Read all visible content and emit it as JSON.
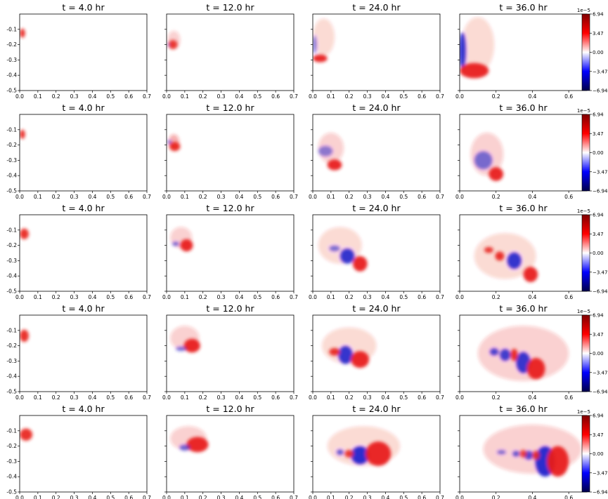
{
  "chart_data": {
    "type": "heatmap",
    "layout": {
      "rows": 5,
      "cols": 4
    },
    "panel_titles": [
      "t = 4.0 hr",
      "t = 12.0 hr",
      "t = 24.0 hr",
      "t = 36.0 hr"
    ],
    "x_ticks": [
      "0.0",
      "0.1",
      "0.2",
      "0.3",
      "0.4",
      "0.5",
      "0.6",
      "0.7"
    ],
    "x_ticks_last_col": [
      "0.0",
      "0.2",
      "0.4",
      "0.6"
    ],
    "y_ticks": [
      "-0.1",
      "-0.2",
      "-0.3",
      "-0.4",
      "-0.5"
    ],
    "xlim": [
      0,
      0.7
    ],
    "ylim": [
      -0.5,
      0
    ],
    "colorbar": {
      "exponent_label": "1e−5",
      "ticks": [
        "6.94",
        "3.47",
        "0.00",
        "−3.47",
        "−6.94"
      ],
      "range": [
        -6.94,
        6.94
      ],
      "colormap": "seismic"
    },
    "colors": {
      "positive": "#e8201a",
      "positive_dark": "#8a0000",
      "negative": "#2222cc",
      "negative_dark": "#00006a",
      "zero": "#ffffff"
    },
    "blobs": [
      [
        [
          {
            "x": 0.015,
            "y": -0.125,
            "rx": 0.015,
            "ry": 0.03,
            "v": 0.9
          }
        ],
        [
          {
            "x": 0.04,
            "y": -0.17,
            "rx": 0.035,
            "ry": 0.06,
            "v": 0.15
          },
          {
            "x": 0.035,
            "y": -0.2,
            "rx": 0.025,
            "ry": 0.03,
            "v": 0.85
          },
          {
            "x": 0.01,
            "y": -0.2,
            "rx": 0.008,
            "ry": 0.012,
            "v": -0.4
          }
        ],
        [
          {
            "x": 0.06,
            "y": -0.15,
            "rx": 0.06,
            "ry": 0.12,
            "v": 0.12
          },
          {
            "x": 0.01,
            "y": -0.2,
            "rx": 0.012,
            "ry": 0.06,
            "v": -0.55
          },
          {
            "x": 0.04,
            "y": -0.29,
            "rx": 0.04,
            "ry": 0.025,
            "v": 0.95
          }
        ],
        [
          {
            "x": 0.1,
            "y": -0.2,
            "rx": 0.09,
            "ry": 0.18,
            "v": 0.12
          },
          {
            "x": 0.015,
            "y": -0.24,
            "rx": 0.02,
            "ry": 0.12,
            "v": -0.9
          },
          {
            "x": 0.08,
            "y": -0.37,
            "rx": 0.08,
            "ry": 0.05,
            "v": 0.95
          }
        ]
      ],
      [
        [
          {
            "x": 0.015,
            "y": -0.13,
            "rx": 0.015,
            "ry": 0.03,
            "v": 0.9
          }
        ],
        [
          {
            "x": 0.04,
            "y": -0.18,
            "rx": 0.03,
            "ry": 0.05,
            "v": 0.25
          },
          {
            "x": 0.045,
            "y": -0.21,
            "rx": 0.03,
            "ry": 0.03,
            "v": 0.9
          },
          {
            "x": 0.015,
            "y": -0.18,
            "rx": 0.012,
            "ry": 0.012,
            "v": -0.6
          }
        ],
        [
          {
            "x": 0.1,
            "y": -0.22,
            "rx": 0.07,
            "ry": 0.1,
            "v": 0.15
          },
          {
            "x": 0.07,
            "y": -0.24,
            "rx": 0.04,
            "ry": 0.035,
            "v": -0.5
          },
          {
            "x": 0.12,
            "y": -0.33,
            "rx": 0.04,
            "ry": 0.035,
            "v": 0.95
          }
        ],
        [
          {
            "x": 0.15,
            "y": -0.26,
            "rx": 0.09,
            "ry": 0.14,
            "v": 0.15
          },
          {
            "x": 0.13,
            "y": -0.3,
            "rx": 0.05,
            "ry": 0.06,
            "v": -0.6
          },
          {
            "x": 0.2,
            "y": -0.39,
            "rx": 0.04,
            "ry": 0.045,
            "v": 0.95
          }
        ]
      ],
      [
        [
          {
            "x": 0.025,
            "y": -0.125,
            "rx": 0.025,
            "ry": 0.035,
            "v": 0.9
          }
        ],
        [
          {
            "x": 0.08,
            "y": -0.15,
            "rx": 0.06,
            "ry": 0.07,
            "v": 0.15
          },
          {
            "x": 0.11,
            "y": -0.2,
            "rx": 0.035,
            "ry": 0.04,
            "v": 0.95
          },
          {
            "x": 0.05,
            "y": -0.19,
            "rx": 0.02,
            "ry": 0.015,
            "v": -0.6
          }
        ],
        [
          {
            "x": 0.15,
            "y": -0.2,
            "rx": 0.12,
            "ry": 0.12,
            "v": 0.12
          },
          {
            "x": 0.19,
            "y": -0.27,
            "rx": 0.04,
            "ry": 0.05,
            "v": -0.9
          },
          {
            "x": 0.12,
            "y": -0.22,
            "rx": 0.03,
            "ry": 0.02,
            "v": -0.6
          },
          {
            "x": 0.26,
            "y": -0.32,
            "rx": 0.04,
            "ry": 0.05,
            "v": 0.95
          }
        ],
        [
          {
            "x": 0.25,
            "y": -0.27,
            "rx": 0.17,
            "ry": 0.15,
            "v": 0.12
          },
          {
            "x": 0.22,
            "y": -0.27,
            "rx": 0.025,
            "ry": 0.03,
            "v": 0.9
          },
          {
            "x": 0.3,
            "y": -0.3,
            "rx": 0.04,
            "ry": 0.055,
            "v": -0.9
          },
          {
            "x": 0.16,
            "y": -0.23,
            "rx": 0.025,
            "ry": 0.02,
            "v": 0.85
          },
          {
            "x": 0.39,
            "y": -0.39,
            "rx": 0.04,
            "ry": 0.05,
            "v": 0.95
          }
        ]
      ],
      [
        [
          {
            "x": 0.025,
            "y": -0.135,
            "rx": 0.025,
            "ry": 0.04,
            "v": 0.9
          }
        ],
        [
          {
            "x": 0.1,
            "y": -0.15,
            "rx": 0.08,
            "ry": 0.08,
            "v": 0.15
          },
          {
            "x": 0.14,
            "y": -0.2,
            "rx": 0.045,
            "ry": 0.045,
            "v": 0.95
          },
          {
            "x": 0.08,
            "y": -0.22,
            "rx": 0.03,
            "ry": 0.015,
            "v": -0.6
          }
        ],
        [
          {
            "x": 0.2,
            "y": -0.2,
            "rx": 0.15,
            "ry": 0.12,
            "v": 0.12
          },
          {
            "x": 0.18,
            "y": -0.26,
            "rx": 0.04,
            "ry": 0.06,
            "v": -0.9
          },
          {
            "x": 0.12,
            "y": -0.24,
            "rx": 0.03,
            "ry": 0.025,
            "v": 0.9
          },
          {
            "x": 0.26,
            "y": -0.29,
            "rx": 0.05,
            "ry": 0.055,
            "v": 0.95
          }
        ],
        [
          {
            "x": 0.35,
            "y": -0.25,
            "rx": 0.25,
            "ry": 0.18,
            "v": 0.15
          },
          {
            "x": 0.35,
            "y": -0.31,
            "rx": 0.04,
            "ry": 0.07,
            "v": -0.9
          },
          {
            "x": 0.25,
            "y": -0.26,
            "rx": 0.03,
            "ry": 0.04,
            "v": -0.85
          },
          {
            "x": 0.19,
            "y": -0.24,
            "rx": 0.025,
            "ry": 0.025,
            "v": -0.8
          },
          {
            "x": 0.3,
            "y": -0.26,
            "rx": 0.02,
            "ry": 0.04,
            "v": 0.9
          },
          {
            "x": 0.42,
            "y": -0.35,
            "rx": 0.05,
            "ry": 0.07,
            "v": 0.95
          }
        ]
      ],
      [
        [
          {
            "x": 0.035,
            "y": -0.125,
            "rx": 0.035,
            "ry": 0.04,
            "v": 0.9
          }
        ],
        [
          {
            "x": 0.12,
            "y": -0.15,
            "rx": 0.1,
            "ry": 0.08,
            "v": 0.15
          },
          {
            "x": 0.17,
            "y": -0.19,
            "rx": 0.06,
            "ry": 0.05,
            "v": 0.95
          },
          {
            "x": 0.1,
            "y": -0.21,
            "rx": 0.03,
            "ry": 0.02,
            "v": -0.65
          }
        ],
        [
          {
            "x": 0.28,
            "y": -0.2,
            "rx": 0.2,
            "ry": 0.13,
            "v": 0.12
          },
          {
            "x": 0.26,
            "y": -0.26,
            "rx": 0.05,
            "ry": 0.06,
            "v": -0.95
          },
          {
            "x": 0.2,
            "y": -0.25,
            "rx": 0.025,
            "ry": 0.025,
            "v": 0.85
          },
          {
            "x": 0.15,
            "y": -0.24,
            "rx": 0.02,
            "ry": 0.02,
            "v": -0.7
          },
          {
            "x": 0.36,
            "y": -0.25,
            "rx": 0.07,
            "ry": 0.08,
            "v": 0.95
          }
        ],
        [
          {
            "x": 0.4,
            "y": -0.22,
            "rx": 0.27,
            "ry": 0.16,
            "v": 0.15
          },
          {
            "x": 0.47,
            "y": -0.3,
            "rx": 0.055,
            "ry": 0.1,
            "v": -0.95
          },
          {
            "x": 0.38,
            "y": -0.26,
            "rx": 0.025,
            "ry": 0.03,
            "v": -0.8
          },
          {
            "x": 0.31,
            "y": -0.25,
            "rx": 0.02,
            "ry": 0.02,
            "v": -0.7
          },
          {
            "x": 0.23,
            "y": -0.24,
            "rx": 0.025,
            "ry": 0.015,
            "v": -0.6
          },
          {
            "x": 0.42,
            "y": -0.26,
            "rx": 0.02,
            "ry": 0.03,
            "v": 0.85
          },
          {
            "x": 0.35,
            "y": -0.25,
            "rx": 0.02,
            "ry": 0.025,
            "v": 0.8
          },
          {
            "x": 0.54,
            "y": -0.3,
            "rx": 0.06,
            "ry": 0.1,
            "v": 0.95
          }
        ]
      ]
    ]
  }
}
